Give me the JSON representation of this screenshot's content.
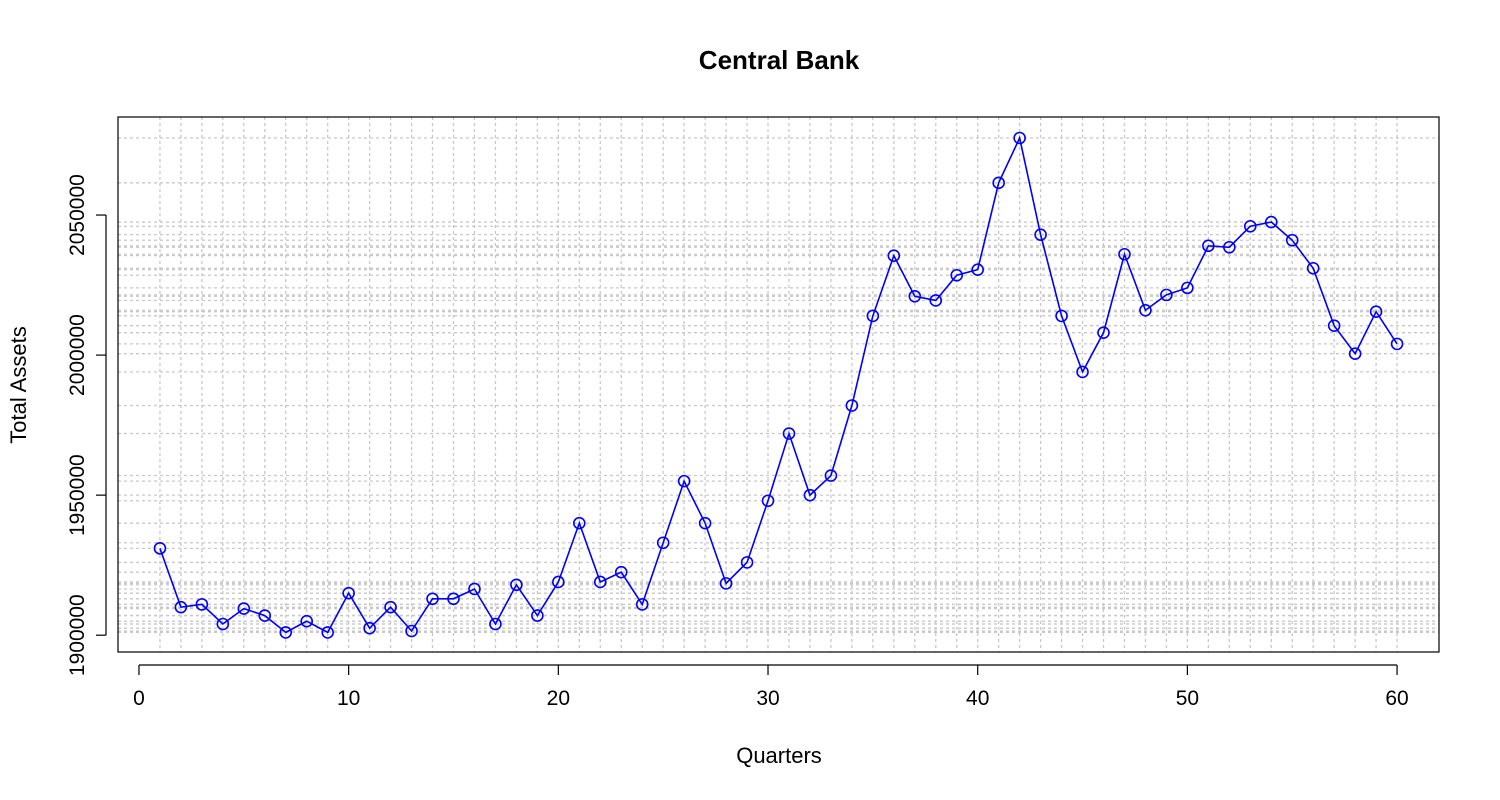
{
  "chart_data": {
    "type": "line",
    "title": "Central Bank",
    "xlabel": "Quarters",
    "ylabel": "Total Assets",
    "xlim": [
      -1,
      62
    ],
    "ylim": [
      1894000,
      2085000
    ],
    "x_ticks": [
      0,
      10,
      20,
      30,
      40,
      50,
      60
    ],
    "y_ticks": [
      1900000,
      1950000,
      2000000,
      2050000
    ],
    "x_tick_labels": [
      "0",
      "10",
      "20",
      "30",
      "40",
      "50",
      "60"
    ],
    "y_tick_labels": [
      "1900000",
      "1950000",
      "2000000",
      "2050000"
    ],
    "grid": true,
    "line_color": "#0000ff",
    "marker": "open-circle",
    "series": [
      {
        "x": [
          1,
          2,
          3,
          4,
          5,
          6,
          7,
          8,
          9,
          10,
          11,
          12,
          13,
          14,
          15,
          16,
          17,
          18,
          19,
          20,
          21,
          22,
          23,
          24,
          25,
          26,
          27,
          28,
          29,
          30,
          31,
          32,
          33,
          34,
          35,
          36,
          37,
          38,
          39,
          40,
          41,
          42,
          43,
          44,
          45,
          46,
          47,
          48,
          49,
          50,
          51,
          52,
          53,
          54,
          55,
          56,
          57,
          58,
          59,
          60
        ],
        "values": [
          1931000,
          1910000,
          1911000,
          1904000,
          1909500,
          1907000,
          1901000,
          1905000,
          1901000,
          1915000,
          1902500,
          1910000,
          1901500,
          1913000,
          1913000,
          1916500,
          1904000,
          1918000,
          1907000,
          1919000,
          1940000,
          1919000,
          1922500,
          1911000,
          1933000,
          1955000,
          1940000,
          1918500,
          1926000,
          1948000,
          1972000,
          1950000,
          1957000,
          1982000,
          2014000,
          2035500,
          2021000,
          2019500,
          2028500,
          2030500,
          2061500,
          2077500,
          2043000,
          2014000,
          1994000,
          2008000,
          2036000,
          2016000,
          2021500,
          2024000,
          2039000,
          2038500,
          2046000,
          2047500,
          2041000,
          2031000,
          2010500,
          2000500,
          2015500,
          2004000
        ]
      }
    ]
  }
}
